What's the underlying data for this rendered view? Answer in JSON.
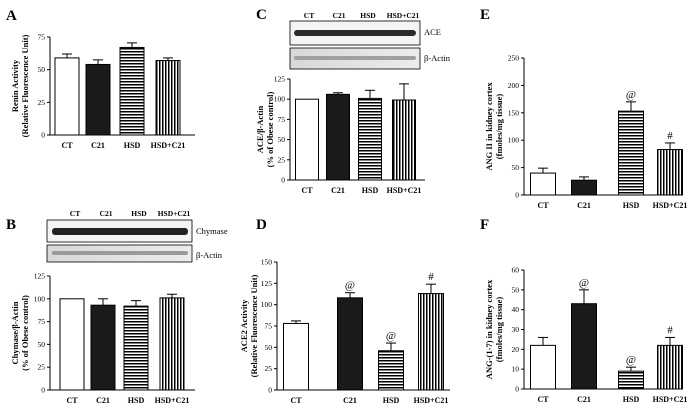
{
  "palette": {
    "white_bar": "#ffffff",
    "black_bar": "#1a1a1a",
    "stripe": "#000000",
    "axis": "#000000"
  },
  "panels": [
    {
      "id": "A",
      "label": "A"
    },
    {
      "id": "B",
      "label": "B"
    },
    {
      "id": "C",
      "label": "C"
    },
    {
      "id": "D",
      "label": "D"
    },
    {
      "id": "E",
      "label": "E"
    },
    {
      "id": "F",
      "label": "F"
    }
  ],
  "blots": {
    "B": {
      "categories": [
        "CT",
        "C21",
        "HSD",
        "HSD+C21"
      ],
      "band1": "Chymase",
      "band2": "β-Actin"
    },
    "C": {
      "categories": [
        "CT",
        "C21",
        "HSD",
        "HSD+C21"
      ],
      "band1": "ACE",
      "band2": "β-Actin"
    }
  },
  "chart_data": [
    {
      "id": "A",
      "type": "bar",
      "categories": [
        "CT",
        "C21",
        "HSD",
        "HSD+C21"
      ],
      "values": [
        59,
        54,
        67,
        57
      ],
      "errors": [
        3,
        3.5,
        3.5,
        2
      ],
      "fills": [
        "white",
        "black",
        "hstripe",
        "vstripe"
      ],
      "annotations": [
        "",
        "",
        "",
        ""
      ],
      "ylabel": [
        "Renin Activity",
        "(Relative Fluorescence Unit)"
      ],
      "ylim": [
        0,
        75
      ],
      "yticks": [
        0,
        25,
        50,
        75
      ]
    },
    {
      "id": "B",
      "type": "bar",
      "categories": [
        "CT",
        "C21",
        "HSD",
        "HSD+C21"
      ],
      "values": [
        100,
        93,
        92,
        101
      ],
      "errors": [
        0,
        7,
        6,
        4
      ],
      "fills": [
        "white",
        "black",
        "hstripe",
        "vstripe"
      ],
      "annotations": [
        "",
        "",
        "",
        ""
      ],
      "ylabel": [
        "Chymase/β-Actin",
        "(% of Obese control)"
      ],
      "ylim": [
        0,
        125
      ],
      "yticks": [
        0,
        25,
        50,
        75,
        100,
        125
      ]
    },
    {
      "id": "C",
      "type": "bar",
      "categories": [
        "CT",
        "C21",
        "HSD",
        "HSD+C21"
      ],
      "values": [
        100,
        106,
        101,
        99
      ],
      "errors": [
        0,
        2,
        10,
        20
      ],
      "fills": [
        "white",
        "black",
        "hstripe",
        "vstripe"
      ],
      "annotations": [
        "",
        "",
        "",
        ""
      ],
      "ylabel": [
        "ACE/β-Actin",
        "(% of Obese control)"
      ],
      "ylim": [
        0,
        125
      ],
      "yticks": [
        0,
        25,
        50,
        75,
        100,
        125
      ]
    },
    {
      "id": "D",
      "type": "bar",
      "categories": [
        "CT",
        "C21",
        "HSD",
        "HSD+C21"
      ],
      "values": [
        78,
        108,
        46,
        113
      ],
      "errors": [
        3,
        6,
        9,
        11
      ],
      "fills": [
        "white",
        "black",
        "hstripe",
        "vstripe"
      ],
      "annotations": [
        "",
        "@",
        "@",
        "#"
      ],
      "ylabel": [
        "ACE2 Activity",
        "(Relative Fluorescence Unit)"
      ],
      "ylim": [
        0,
        150
      ],
      "yticks": [
        0,
        25,
        50,
        75,
        100,
        125,
        150
      ]
    },
    {
      "id": "E",
      "type": "bar",
      "categories": [
        "CT",
        "C21",
        "HSD",
        "HSD+C21"
      ],
      "values": [
        40,
        27,
        153,
        83
      ],
      "errors": [
        9,
        6,
        17,
        12
      ],
      "fills": [
        "white",
        "black",
        "hstripe",
        "vstripe"
      ],
      "annotations": [
        "",
        "",
        "@",
        "#"
      ],
      "ylabel": [
        "ANG II in kidney cortex",
        "(fmoles/mg tissue)"
      ],
      "ylim": [
        0,
        250
      ],
      "yticks": [
        0,
        50,
        100,
        150,
        200,
        250
      ]
    },
    {
      "id": "F",
      "type": "bar",
      "categories": [
        "CT",
        "C21",
        "HSD",
        "HSD+C21"
      ],
      "values": [
        22,
        43,
        9,
        22
      ],
      "errors": [
        4,
        7,
        2,
        4
      ],
      "fills": [
        "white",
        "black",
        "hstripe",
        "vstripe"
      ],
      "annotations": [
        "",
        "@",
        "@",
        "#"
      ],
      "ylabel": [
        "ANG-(1-7) in kidney cortex",
        "(fmoles/mg tissue)"
      ],
      "ylim": [
        0,
        60
      ],
      "yticks": [
        0,
        10,
        20,
        30,
        40,
        50,
        60
      ]
    }
  ]
}
